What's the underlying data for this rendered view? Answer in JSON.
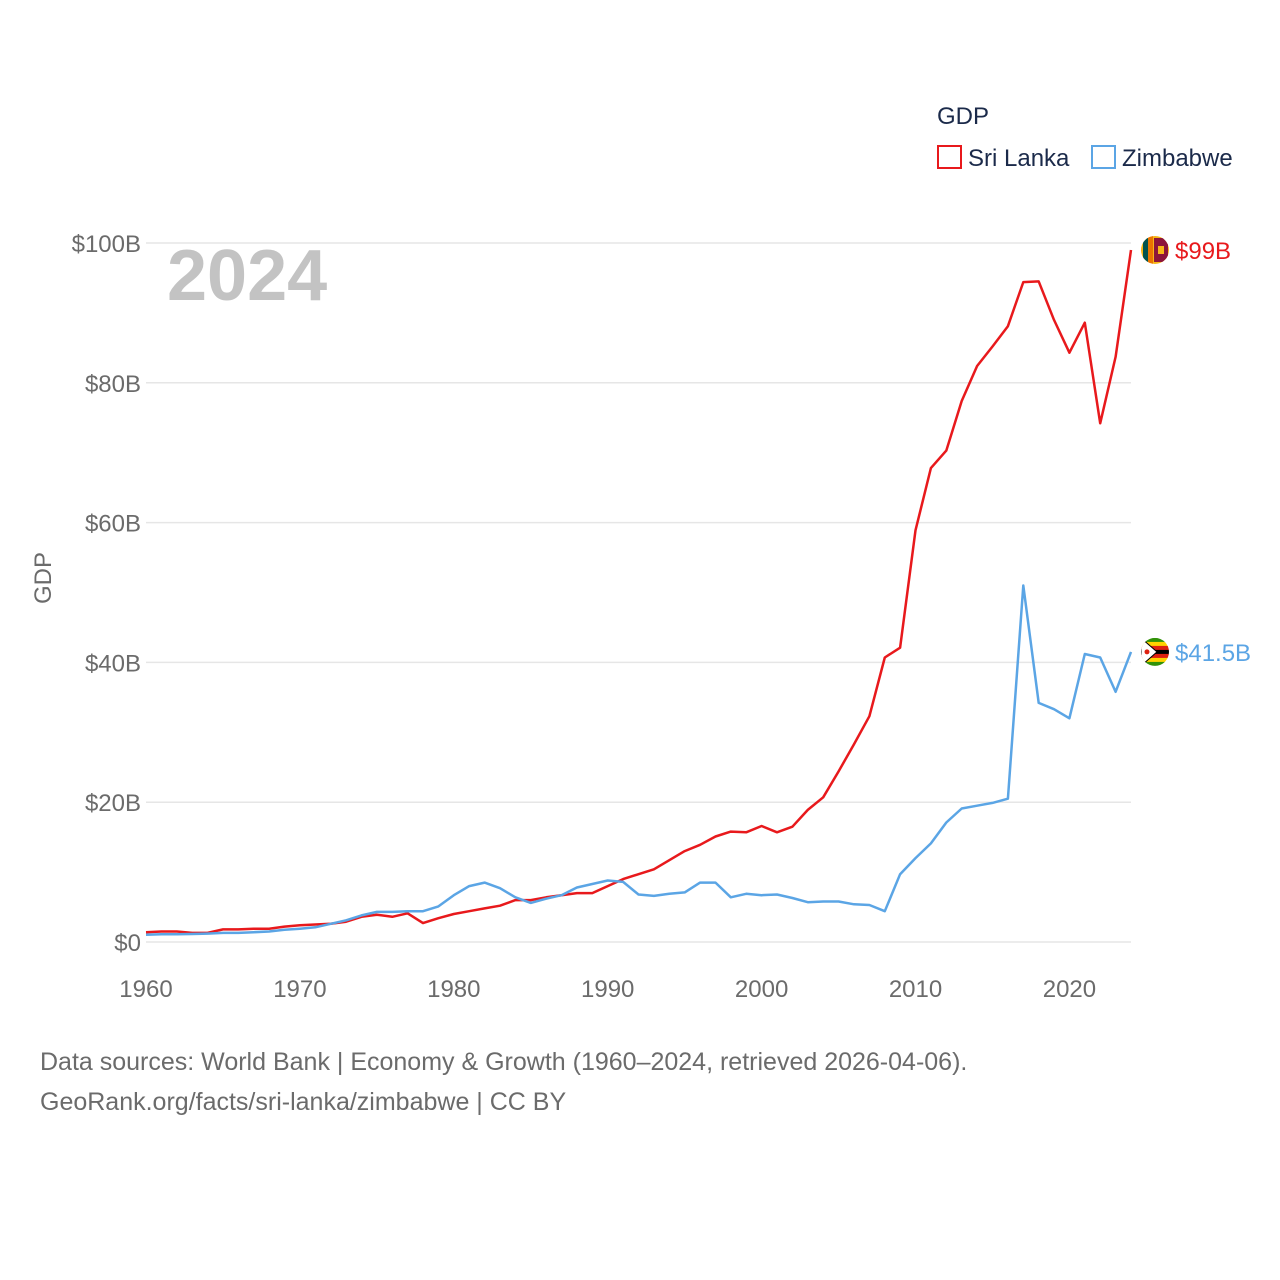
{
  "chart_data": {
    "type": "line",
    "year_label": "2024",
    "ylabel": "GDP",
    "xlim": [
      1960,
      2024
    ],
    "ylim": [
      0,
      100
    ],
    "x_ticks": [
      1960,
      1970,
      1980,
      1990,
      2000,
      2010,
      2020
    ],
    "y_ticks": [
      {
        "value": 0,
        "label": "$0"
      },
      {
        "value": 20,
        "label": "$20B"
      },
      {
        "value": 40,
        "label": "$40B"
      },
      {
        "value": 60,
        "label": "$60B"
      },
      {
        "value": 80,
        "label": "$80B"
      },
      {
        "value": 100,
        "label": "$100B"
      }
    ],
    "legend": {
      "title": "GDP",
      "position": "top-right"
    },
    "x": [
      1960,
      1961,
      1962,
      1963,
      1964,
      1965,
      1966,
      1967,
      1968,
      1969,
      1970,
      1971,
      1972,
      1973,
      1974,
      1975,
      1976,
      1977,
      1978,
      1979,
      1980,
      1981,
      1982,
      1983,
      1984,
      1985,
      1986,
      1987,
      1988,
      1989,
      1990,
      1991,
      1992,
      1993,
      1994,
      1995,
      1996,
      1997,
      1998,
      1999,
      2000,
      2001,
      2002,
      2003,
      2004,
      2005,
      2006,
      2007,
      2008,
      2009,
      2010,
      2011,
      2012,
      2013,
      2014,
      2015,
      2016,
      2017,
      2018,
      2019,
      2020,
      2021,
      2022,
      2023,
      2024
    ],
    "series": [
      {
        "name": "Sri Lanka",
        "color": "#e8191c",
        "end_label": "$99B",
        "flag": "sri-lanka-flag-icon",
        "values": [
          1.4,
          1.5,
          1.5,
          1.3,
          1.3,
          1.8,
          1.8,
          1.9,
          1.9,
          2.2,
          2.4,
          2.5,
          2.6,
          2.9,
          3.6,
          3.9,
          3.6,
          4.1,
          2.7,
          3.4,
          4.0,
          4.4,
          4.8,
          5.2,
          6.0,
          6.0,
          6.4,
          6.7,
          7.0,
          7.0,
          8.0,
          9.0,
          9.7,
          10.4,
          11.7,
          13.0,
          13.9,
          15.1,
          15.8,
          15.7,
          16.6,
          15.7,
          16.5,
          18.9,
          20.7,
          24.4,
          28.3,
          32.3,
          40.7,
          42.1,
          58.9,
          67.8,
          70.3,
          77.4,
          82.4,
          85.2,
          88.1,
          94.4,
          94.5,
          89.0,
          84.3,
          88.6,
          74.2,
          83.7,
          99.0
        ]
      },
      {
        "name": "Zimbabwe",
        "color": "#5ba5e5",
        "end_label": "$41.5B",
        "flag": "zimbabwe-flag-icon",
        "values": [
          1.05,
          1.1,
          1.1,
          1.15,
          1.2,
          1.3,
          1.3,
          1.4,
          1.5,
          1.75,
          1.9,
          2.1,
          2.6,
          3.1,
          3.8,
          4.3,
          4.3,
          4.4,
          4.4,
          5.1,
          6.7,
          8.0,
          8.5,
          7.7,
          6.4,
          5.6,
          6.2,
          6.7,
          7.8,
          8.3,
          8.8,
          8.6,
          6.8,
          6.6,
          6.9,
          7.1,
          8.5,
          8.5,
          6.4,
          6.9,
          6.7,
          6.8,
          6.3,
          5.7,
          5.8,
          5.8,
          5.4,
          5.3,
          4.4,
          9.7,
          12.0,
          14.1,
          17.1,
          19.1,
          19.5,
          19.9,
          20.5,
          51.0,
          34.2,
          33.3,
          32.0,
          41.2,
          40.7,
          35.8,
          41.5
        ]
      }
    ],
    "source_line1": "Data sources: World Bank | Economy & Growth (1960–2024, retrieved 2026-04-06).",
    "source_line2": "GeoRank.org/facts/sri-lanka/zimbabwe | CC BY"
  }
}
